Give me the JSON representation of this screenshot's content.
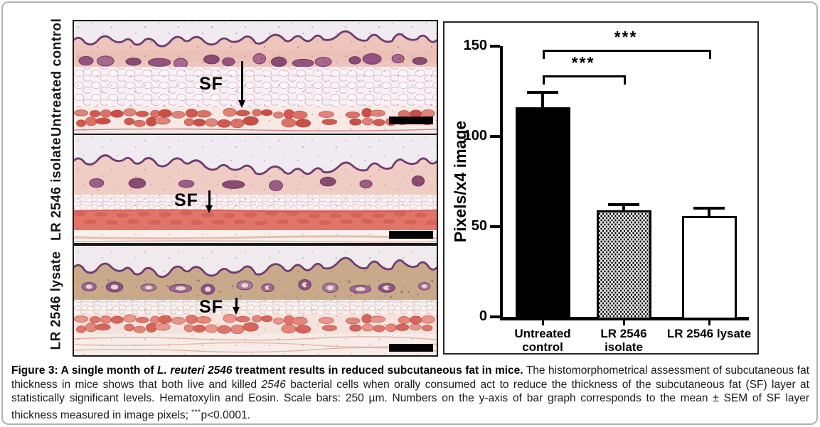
{
  "panels": [
    {
      "label": "Untreated control",
      "sf_label": "SF"
    },
    {
      "label": "LR 2546 isolate",
      "sf_label": "SF"
    },
    {
      "label": "LR 2546 lysate",
      "sf_label": "SF"
    }
  ],
  "chart_data": {
    "type": "bar",
    "title": "",
    "xlabel": "",
    "ylabel": "Pixels/x4 image",
    "categories": [
      "Untreated control",
      "LR 2546 isolate",
      "LR 2546 lysate"
    ],
    "values": [
      116,
      59,
      56
    ],
    "errors_sem": [
      8,
      3,
      4
    ],
    "ylim": [
      0,
      150
    ],
    "yticks": [
      0,
      50,
      100,
      150
    ],
    "bar_fills": [
      "black",
      "dotted",
      "white"
    ],
    "grid": "off",
    "legend": "none",
    "significance": [
      {
        "pair": [
          0,
          1
        ],
        "label": "***",
        "bracket_y": 134
      },
      {
        "pair": [
          0,
          2
        ],
        "label": "***",
        "bracket_y": 148
      }
    ]
  },
  "colors": {
    "bar_outline": "#000000",
    "epidermis": "#6d3c6e",
    "dermis_pink": "#edc5bc",
    "dermis_tan": "#c8aa8b",
    "muscle_red": "#d4584e",
    "panel_border": "#1b1b1b",
    "figure_border": "#b2b2b2"
  },
  "caption": {
    "segments": [
      {
        "text": "Figure 3: A single month of ",
        "style": "bold"
      },
      {
        "text": "L. reuteri 2546",
        "style": "bold-italic"
      },
      {
        "text": " treatment results in reduced subcutaneous fat in mice.",
        "style": "bold"
      },
      {
        "text": " The histomorphometrical assessment of subcutaneous fat thickness in mice shows that both live and killed ",
        "style": "normal"
      },
      {
        "text": "2546",
        "style": "italic"
      },
      {
        "text": " bacterial cells when orally consumed act to reduce the thickness of the subcutaneous fat (SF) layer at statistically significant levels. Hematoxylin and Eosin. Scale bars: 250 µm. Numbers on the y-axis of bar graph corresponds to the mean ± SEM of SF layer thickness measured in image pixels; ",
        "style": "normal"
      },
      {
        "text": "***",
        "style": "superscript"
      },
      {
        "text": "p<0.0001.",
        "style": "normal"
      }
    ]
  }
}
